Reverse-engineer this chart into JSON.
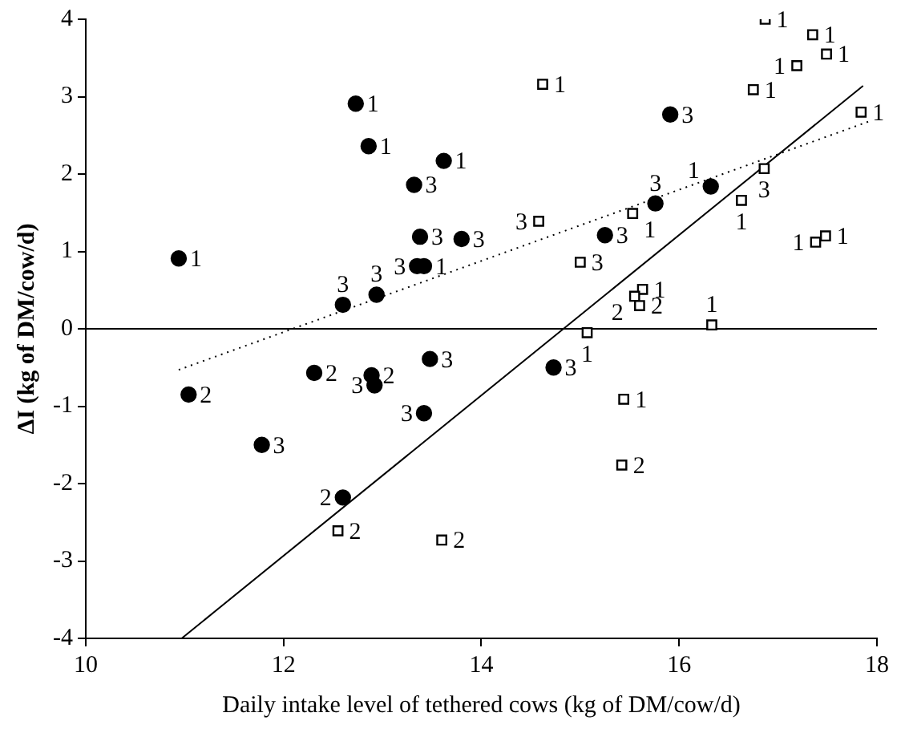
{
  "chart_data": {
    "type": "scatter",
    "xlabel": "Daily intake level of tethered cows (kg of DM/cow/d)",
    "ylabel": "ΔI (kg of DM/cow/d)",
    "xlim": [
      10,
      18
    ],
    "ylim": [
      -4,
      4
    ],
    "xticks": [
      10,
      12,
      14,
      16,
      18
    ],
    "yticks": [
      -4,
      -3,
      -2,
      -1,
      0,
      1,
      2,
      3,
      4
    ],
    "grid": false,
    "legend": false,
    "ref_lines": [
      {
        "axis": "y",
        "value": 0,
        "color": "#000000"
      }
    ],
    "series": [
      {
        "type": "scatter",
        "marker": "circle",
        "color": "#000000",
        "x": [
          10.94,
          12.73,
          12.86,
          13.62,
          13.32,
          13.38,
          13.8,
          13.35,
          13.42,
          12.94,
          12.6,
          11.04,
          12.31,
          12.89,
          12.92,
          13.48,
          13.42,
          11.78,
          12.6,
          14.73,
          15.91,
          16.32,
          15.76,
          15.25
        ],
        "values": [
          0.91,
          2.91,
          2.36,
          2.17,
          1.86,
          1.19,
          1.16,
          0.81,
          0.81,
          0.44,
          0.31,
          -0.85,
          -0.57,
          -0.6,
          -0.73,
          -0.39,
          -1.09,
          -1.5,
          -2.18,
          -0.5,
          2.77,
          1.84,
          1.62,
          1.21
        ]
      },
      {
        "type": "scatter",
        "marker": "square",
        "color": "#000000",
        "x": [
          12.55,
          13.6,
          16.87,
          17.35,
          17.49,
          17.19,
          16.75,
          14.62,
          17.84,
          16.86,
          16.63,
          15.53,
          14.58,
          15.0,
          17.38,
          17.48,
          15.63,
          15.55,
          15.6,
          15.07,
          16.33,
          15.44,
          15.42
        ],
        "values": [
          -2.61,
          -2.73,
          4.0,
          3.8,
          3.55,
          3.4,
          3.09,
          3.16,
          2.8,
          2.07,
          1.66,
          1.49,
          1.39,
          0.86,
          1.12,
          1.2,
          0.51,
          0.42,
          0.3,
          -0.05,
          0.05,
          -0.91,
          -1.76
        ]
      },
      {
        "type": "line",
        "marker": "none",
        "line_style": "solid",
        "color": "#000000",
        "x": [
          10.97,
          17.86
        ],
        "values": [
          -4.0,
          3.14
        ]
      },
      {
        "type": "line",
        "marker": "none",
        "line_style": "dotted",
        "color": "#000000",
        "x": [
          10.94,
          17.92
        ],
        "values": [
          -0.53,
          2.68
        ]
      }
    ],
    "annotations": [
      {
        "text": "1",
        "x": 10.94,
        "y": 0.91
      },
      {
        "text": "1",
        "x": 12.73,
        "y": 2.91
      },
      {
        "text": "1",
        "x": 12.86,
        "y": 2.36
      },
      {
        "text": "1",
        "x": 13.62,
        "y": 2.17
      },
      {
        "text": "3",
        "x": 13.32,
        "y": 1.86
      },
      {
        "text": "3",
        "x": 13.38,
        "y": 1.19
      },
      {
        "text": "3",
        "x": 13.8,
        "y": 1.16
      },
      {
        "text": "3",
        "x": 13.35,
        "y": 0.81
      },
      {
        "text": "1",
        "x": 13.42,
        "y": 0.81
      },
      {
        "text": "3",
        "x": 12.94,
        "y": 0.44
      },
      {
        "text": "3",
        "x": 12.6,
        "y": 0.31
      },
      {
        "text": "2",
        "x": 11.04,
        "y": -0.85
      },
      {
        "text": "2",
        "x": 12.31,
        "y": -0.57
      },
      {
        "text": "2",
        "x": 12.89,
        "y": -0.6
      },
      {
        "text": "3",
        "x": 12.92,
        "y": -0.73
      },
      {
        "text": "3",
        "x": 13.48,
        "y": -0.39
      },
      {
        "text": "3",
        "x": 13.42,
        "y": -1.09
      },
      {
        "text": "3",
        "x": 11.78,
        "y": -1.5
      },
      {
        "text": "2",
        "x": 12.6,
        "y": -2.18
      },
      {
        "text": "3",
        "x": 14.73,
        "y": -0.5
      },
      {
        "text": "3",
        "x": 15.91,
        "y": 2.77
      },
      {
        "text": "1",
        "x": 16.32,
        "y": 1.84
      },
      {
        "text": "3",
        "x": 15.76,
        "y": 1.62
      },
      {
        "text": "3",
        "x": 15.25,
        "y": 1.21
      },
      {
        "text": "2",
        "x": 12.55,
        "y": -2.61
      },
      {
        "text": "2",
        "x": 13.6,
        "y": -2.73
      },
      {
        "text": "1",
        "x": 16.87,
        "y": 4.0
      },
      {
        "text": "1",
        "x": 17.35,
        "y": 3.8
      },
      {
        "text": "1",
        "x": 17.49,
        "y": 3.55
      },
      {
        "text": "1",
        "x": 17.19,
        "y": 3.4
      },
      {
        "text": "1",
        "x": 16.75,
        "y": 3.09
      },
      {
        "text": "1",
        "x": 14.62,
        "y": 3.16
      },
      {
        "text": "1",
        "x": 17.84,
        "y": 2.8
      },
      {
        "text": "3",
        "x": 16.86,
        "y": 2.07
      },
      {
        "text": "1",
        "x": 16.63,
        "y": 1.66
      },
      {
        "text": "1",
        "x": 15.53,
        "y": 1.49
      },
      {
        "text": "3",
        "x": 14.58,
        "y": 1.39
      },
      {
        "text": "3",
        "x": 15.0,
        "y": 0.86
      },
      {
        "text": "1",
        "x": 17.38,
        "y": 1.12
      },
      {
        "text": "1",
        "x": 17.48,
        "y": 1.2
      },
      {
        "text": "1",
        "x": 15.63,
        "y": 0.51
      },
      {
        "text": "2",
        "x": 15.55,
        "y": 0.42
      },
      {
        "text": "2",
        "x": 15.6,
        "y": 0.3
      },
      {
        "text": "1",
        "x": 15.07,
        "y": -0.05
      },
      {
        "text": "1",
        "x": 16.33,
        "y": 0.05
      },
      {
        "text": "1",
        "x": 15.44,
        "y": -0.91
      },
      {
        "text": "2",
        "x": 15.42,
        "y": -1.76
      }
    ]
  }
}
